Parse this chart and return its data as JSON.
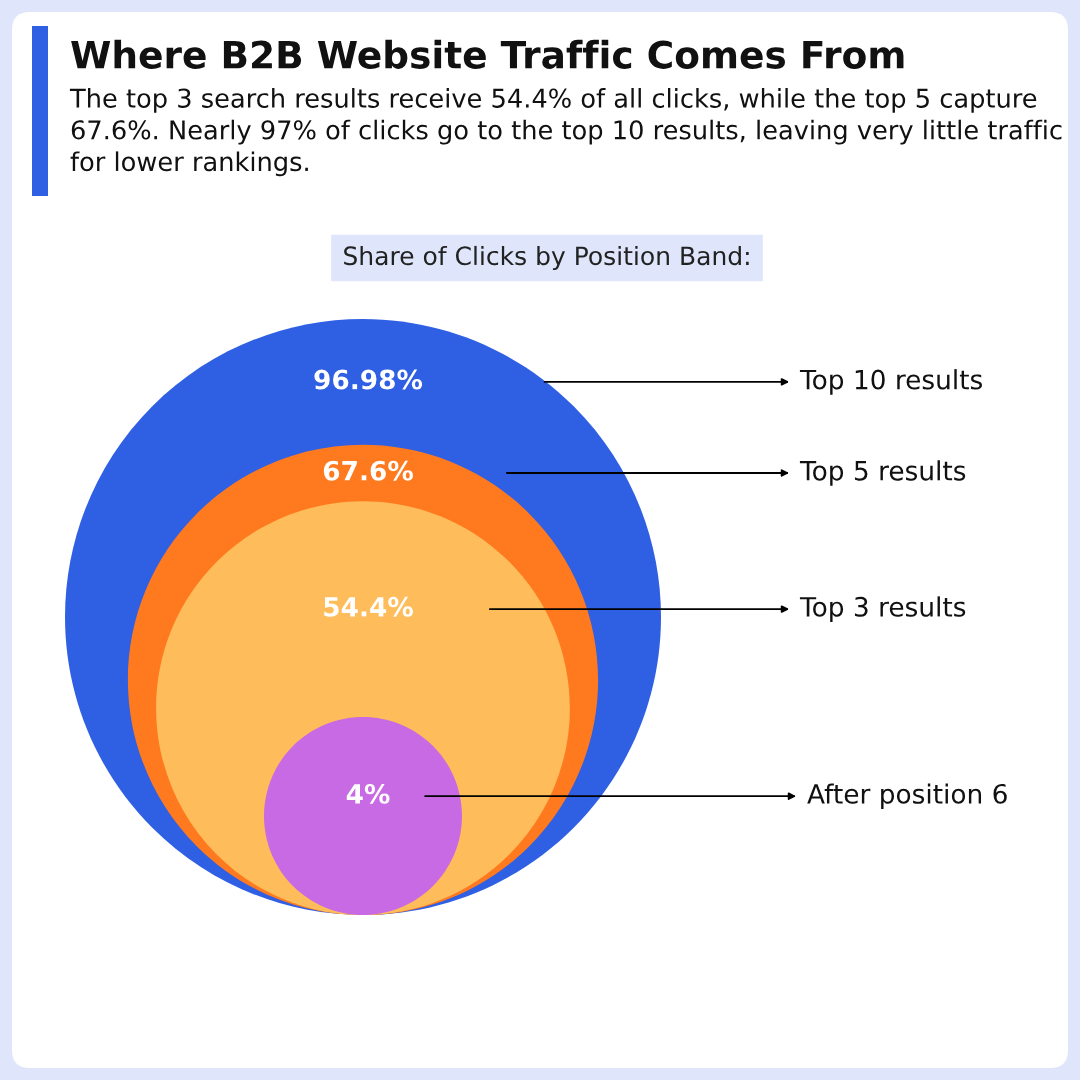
{
  "chart_data": {
    "type": "other",
    "title": "Where B2B Website Traffic Comes From",
    "subtitle": "The top 3 search results receive 54.4% of all clicks, while the top 5 capture 67.6%. Nearly 97% of clicks go to the top 10 results, leaving very little traffic for lower rankings.",
    "annotations": [
      "Share of Clicks by Position Band:"
    ],
    "categories": [
      "Top 10 results",
      "Top 5 results",
      "Top 3 results",
      "After position 6"
    ],
    "values": [
      96.98,
      67.6,
      54.4,
      4
    ],
    "value_labels": [
      "96.98%",
      "67.6%",
      "54.4%",
      "4%"
    ],
    "colors": [
      "#2f5fe3",
      "#ff7a1f",
      "#ffbc5a",
      "#c86ae3"
    ]
  }
}
